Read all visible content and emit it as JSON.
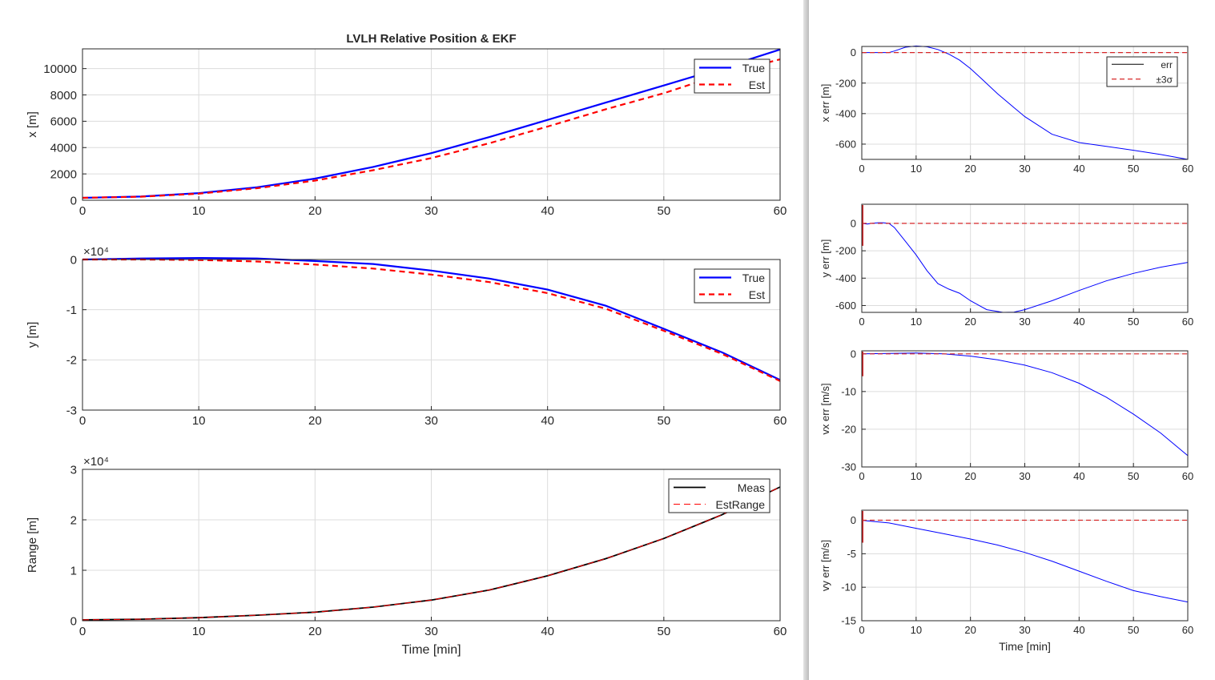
{
  "colors": {
    "true": "#0000ff",
    "est": "#ff0000",
    "meas": "#000000",
    "err": "#0000ff",
    "sigma": "#d62728",
    "grid": "#dcdcdc",
    "axis": "#262626"
  },
  "chart_data": [
    {
      "id": "x-pos",
      "type": "line",
      "title": "LVLH Relative Position & EKF",
      "xlabel": "",
      "ylabel": "x [m]",
      "xlim": [
        0,
        60
      ],
      "ylim": [
        0,
        11500
      ],
      "xticks": [
        "0",
        "10",
        "20",
        "30",
        "40",
        "50",
        "60"
      ],
      "yticks": [
        "0",
        "2000",
        "4000",
        "6000",
        "8000",
        "10000"
      ],
      "exponent": "",
      "legend": {
        "position": "top-right",
        "entries": [
          "True",
          "Est"
        ]
      },
      "x": [
        0,
        5,
        10,
        15,
        20,
        25,
        30,
        35,
        40,
        45,
        50,
        55,
        60
      ],
      "series": [
        {
          "name": "True",
          "values": [
            180,
            280,
            540,
            980,
            1640,
            2530,
            3580,
            4800,
            6100,
            7420,
            8720,
            10040,
            11450
          ]
        },
        {
          "name": "Est",
          "values": [
            180,
            270,
            500,
            910,
            1490,
            2280,
            3200,
            4330,
            5600,
            6910,
            8130,
            9580,
            10700
          ]
        }
      ]
    },
    {
      "id": "y-pos",
      "type": "line",
      "title": "",
      "xlabel": "",
      "ylabel": "y [m]",
      "xlim": [
        0,
        60
      ],
      "ylim": [
        -3,
        0
      ],
      "xticks": [
        "0",
        "10",
        "20",
        "30",
        "40",
        "50",
        "60"
      ],
      "yticks": [
        "-3",
        "-2",
        "-1",
        "0"
      ],
      "exponent": "×10⁴",
      "legend": {
        "position": "top-right",
        "entries": [
          "True",
          "Est"
        ]
      },
      "x": [
        0,
        5,
        10,
        15,
        20,
        25,
        30,
        35,
        40,
        45,
        50,
        55,
        60
      ],
      "series": [
        {
          "name": "True",
          "values": [
            0,
            0.02,
            0.03,
            0.02,
            -0.03,
            -0.09,
            -0.22,
            -0.38,
            -0.6,
            -0.92,
            -1.38,
            -1.85,
            -2.4
          ]
        },
        {
          "name": "Est",
          "values": [
            0,
            0.0,
            -0.01,
            -0.04,
            -0.1,
            -0.18,
            -0.3,
            -0.45,
            -0.67,
            -0.98,
            -1.42,
            -1.88,
            -2.42
          ]
        }
      ]
    },
    {
      "id": "range",
      "type": "line",
      "title": "",
      "xlabel": "Time [min]",
      "ylabel": "Range [m]",
      "xlim": [
        0,
        60
      ],
      "ylim": [
        0,
        3
      ],
      "xticks": [
        "0",
        "10",
        "20",
        "30",
        "40",
        "50",
        "60"
      ],
      "yticks": [
        "0",
        "1",
        "2",
        "3"
      ],
      "exponent": "×10⁴",
      "legend": {
        "position": "top-right",
        "entries": [
          "Meas",
          "EstRange"
        ]
      },
      "x": [
        0,
        5,
        10,
        15,
        20,
        25,
        30,
        35,
        40,
        45,
        50,
        55,
        60
      ],
      "series": [
        {
          "name": "Meas",
          "values": [
            0.018,
            0.03,
            0.06,
            0.11,
            0.17,
            0.27,
            0.41,
            0.61,
            0.89,
            1.23,
            1.63,
            2.1,
            2.65
          ]
        },
        {
          "name": "EstRange",
          "values": [
            0.018,
            0.03,
            0.06,
            0.11,
            0.17,
            0.27,
            0.41,
            0.61,
            0.89,
            1.23,
            1.63,
            2.1,
            2.65
          ]
        }
      ]
    },
    {
      "id": "x-err",
      "type": "line",
      "title": "",
      "xlabel": "",
      "ylabel": "x err [m]",
      "xlim": [
        0,
        60
      ],
      "ylim": [
        -700,
        40
      ],
      "xticks": [
        "0",
        "10",
        "20",
        "30",
        "40",
        "50",
        "60"
      ],
      "yticks": [
        "-600",
        "-400",
        "-200",
        "0"
      ],
      "exponent": "",
      "legend": {
        "position": "top-right",
        "entries": [
          "err",
          "±3σ"
        ]
      },
      "x": [
        0,
        5,
        6,
        8,
        10,
        12,
        14,
        16,
        18,
        20,
        22,
        25,
        28,
        30,
        35,
        40,
        45,
        50,
        55,
        60
      ],
      "series": [
        {
          "name": "err",
          "values": [
            0,
            0,
            10,
            35,
            43,
            38,
            20,
            -10,
            -50,
            -105,
            -170,
            -270,
            -360,
            -420,
            -535,
            -590,
            -615,
            -640,
            -668,
            -700
          ]
        },
        {
          "name": "±3σ",
          "values": [
            0,
            0,
            0,
            0,
            0,
            0,
            0,
            0,
            0,
            0,
            0,
            0,
            0,
            0,
            0,
            0,
            0,
            0,
            0,
            0
          ]
        }
      ]
    },
    {
      "id": "y-err",
      "type": "line",
      "title": "",
      "xlabel": "",
      "ylabel": "y err [m]",
      "xlim": [
        0,
        60
      ],
      "ylim": [
        -650,
        140
      ],
      "xticks": [
        "0",
        "10",
        "20",
        "30",
        "40",
        "50",
        "60"
      ],
      "yticks": [
        "-600",
        "-400",
        "-200",
        "0"
      ],
      "exponent": "",
      "legend": {
        "position": "none",
        "entries": []
      },
      "x": [
        0,
        1,
        2,
        3,
        4,
        5,
        6,
        8,
        10,
        12,
        14,
        16,
        18,
        20,
        23,
        26,
        28,
        30,
        35,
        40,
        45,
        50,
        55,
        60
      ],
      "series": [
        {
          "name": "err",
          "values": [
            0,
            -5,
            2,
            5,
            5,
            0,
            -30,
            -130,
            -230,
            -345,
            -440,
            -480,
            -510,
            -565,
            -630,
            -650,
            -648,
            -630,
            -565,
            -490,
            -420,
            -365,
            -320,
            -285
          ]
        },
        {
          "name": "±3σ",
          "values": [
            0,
            0,
            0,
            0,
            0,
            0,
            0,
            0,
            0,
            0,
            0,
            0,
            0,
            0,
            0,
            0,
            0,
            0,
            0,
            0,
            0,
            0,
            0,
            0
          ]
        }
      ]
    },
    {
      "id": "vx-err",
      "type": "line",
      "title": "",
      "xlabel": "",
      "ylabel": "vx err [m/s]",
      "xlim": [
        0,
        60
      ],
      "ylim": [
        -30,
        0.8
      ],
      "xticks": [
        "0",
        "10",
        "20",
        "30",
        "40",
        "50",
        "60"
      ],
      "yticks": [
        "-30",
        "-20",
        "-10",
        "0"
      ],
      "exponent": "",
      "legend": {
        "position": "none",
        "entries": []
      },
      "x": [
        0,
        5,
        10,
        15,
        20,
        25,
        30,
        35,
        40,
        45,
        50,
        55,
        60
      ],
      "series": [
        {
          "name": "err",
          "values": [
            0,
            0.1,
            0.2,
            0,
            -0.6,
            -1.6,
            -3,
            -5,
            -7.8,
            -11.5,
            -16,
            -21,
            -27
          ]
        },
        {
          "name": "±3σ",
          "values": [
            0,
            0,
            0,
            0,
            0,
            0,
            0,
            0,
            0,
            0,
            0,
            0,
            0
          ]
        }
      ]
    },
    {
      "id": "vy-err",
      "type": "line",
      "title": "",
      "xlabel": "Time [min]",
      "ylabel": "vy err [m/s]",
      "xlim": [
        0,
        60
      ],
      "ylim": [
        -15,
        1.5
      ],
      "xticks": [
        "0",
        "10",
        "20",
        "30",
        "40",
        "50",
        "60"
      ],
      "yticks": [
        "-15",
        "-10",
        "-5",
        "0"
      ],
      "exponent": "",
      "legend": {
        "position": "none",
        "entries": []
      },
      "x": [
        0,
        1,
        5,
        10,
        15,
        20,
        25,
        30,
        35,
        40,
        45,
        50,
        55,
        60
      ],
      "series": [
        {
          "name": "err",
          "values": [
            0,
            -0.1,
            -0.4,
            -1.2,
            -2,
            -2.8,
            -3.7,
            -4.8,
            -6.1,
            -7.6,
            -9.1,
            -10.5,
            -11.4,
            -12.2
          ]
        },
        {
          "name": "±3σ",
          "values": [
            0,
            0,
            0,
            0,
            0,
            0,
            0,
            0,
            0,
            0,
            0,
            0,
            0,
            0
          ]
        }
      ]
    }
  ]
}
